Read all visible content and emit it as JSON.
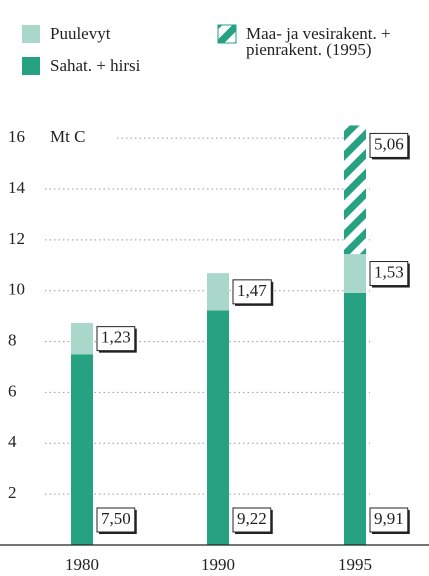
{
  "chart_data": {
    "type": "bar",
    "stacked": true,
    "y_label": "Mt C",
    "categories": [
      "1980",
      "1990",
      "1995"
    ],
    "series": [
      {
        "name": "Sahat. + hirsi",
        "color": "#26a282",
        "values": [
          7.5,
          9.22,
          9.91
        ],
        "value_labels": [
          "7,50",
          "9,22",
          "9,91"
        ]
      },
      {
        "name": "Puulevyt",
        "color": "#a9d7c9",
        "values": [
          1.23,
          1.47,
          1.53
        ],
        "value_labels": [
          "1,23",
          "1,47",
          "1,53"
        ]
      },
      {
        "name": "Maa- ja vesirakent. + pienrakent. (1995)",
        "color": "#26a282",
        "pattern": "hatch",
        "values": [
          null,
          null,
          5.06
        ],
        "value_labels": [
          null,
          null,
          "5,06"
        ]
      }
    ],
    "ylim": [
      0,
      17
    ],
    "yticks": [
      2,
      4,
      6,
      8,
      10,
      12,
      14,
      16
    ],
    "grid": true
  }
}
